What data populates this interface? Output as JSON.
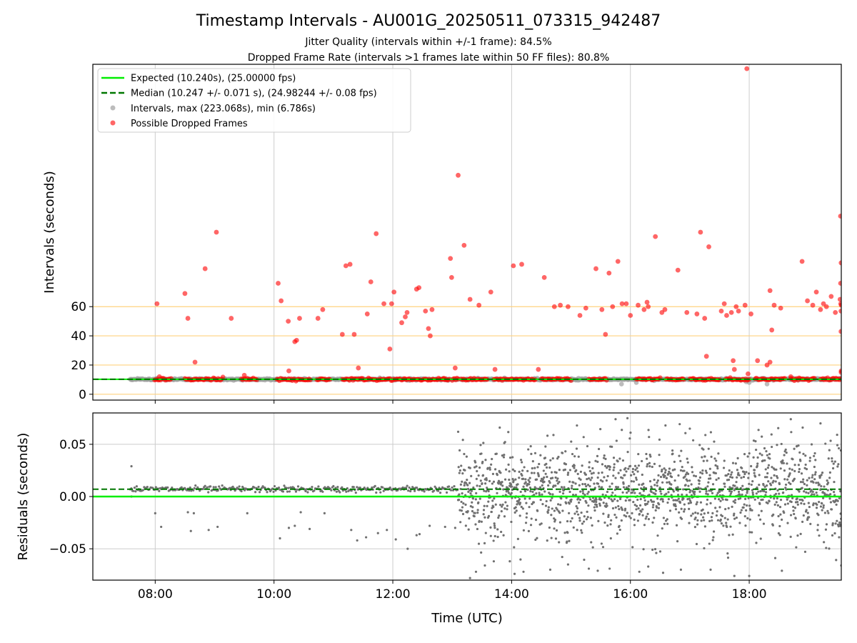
{
  "title": "Timestamp Intervals - AU001G_20250511_073315_942487",
  "subtitle_1": "Jitter Quality (intervals within +/-1 frame): 84.5%",
  "subtitle_2": "Dropped Frame Rate (intervals >1 frames late within 50 FF files): 80.8%",
  "colors": {
    "expected": "#00ee00",
    "median": "#007700",
    "intervals": "#a0a0a0",
    "dropped": "#ff0000",
    "reference_lines": "#ffd27f",
    "grid": "#cccccc",
    "residual_points": "#707070"
  },
  "chart_data": [
    {
      "type": "scatter",
      "panel": "top",
      "xlabel": "",
      "ylabel": "Intervals (seconds)",
      "x_unit": "hours UTC",
      "xlim": [
        6.95,
        19.55
      ],
      "ylim": [
        -4,
        226
      ],
      "yticks": [
        0,
        20,
        40,
        60
      ],
      "ytick_labels": [
        "0",
        "20",
        "40",
        "60"
      ],
      "xticks": [
        8,
        10,
        12,
        14,
        16,
        18
      ],
      "xtick_labels": [
        "08:00",
        "10:00",
        "12:00",
        "14:00",
        "16:00",
        "18:00"
      ],
      "grid": "vertical",
      "reference_lines_y": [
        0,
        20,
        40,
        60
      ],
      "expected_interval": 10.24,
      "median_interval": 10.247,
      "legend_position": "upper-left",
      "legend": [
        {
          "label": "Expected (10.240s), (25.00000 fps)",
          "style": "solid-line",
          "color": "#00ee00"
        },
        {
          "label": "Median (10.247 +/- 0.071 s), (24.98244 +/- 0.08 fps)",
          "style": "dashed-line",
          "color": "#007700"
        },
        {
          "label": "Intervals, max (223.068s), min (6.786s)",
          "style": "dot",
          "color": "#a0a0a0"
        },
        {
          "label": "Possible Dropped Frames",
          "style": "dot",
          "color": "#ff0000"
        }
      ],
      "intervals_x_range": [
        7.58,
        19.55
      ],
      "dropped_band_segments": [
        [
          7.99,
          8.28
        ],
        [
          8.5,
          9.15
        ],
        [
          9.45,
          9.72
        ],
        [
          10.05,
          10.62
        ],
        [
          10.72,
          10.95
        ],
        [
          11.15,
          12.95
        ],
        [
          13.0,
          13.1
        ],
        [
          13.15,
          13.6
        ],
        [
          13.7,
          14.4
        ],
        [
          14.5,
          15.0
        ],
        [
          15.3,
          15.6
        ],
        [
          16.1,
          16.5
        ],
        [
          16.6,
          16.9
        ],
        [
          17.0,
          17.5
        ],
        [
          17.6,
          18.0
        ],
        [
          18.1,
          18.6
        ],
        [
          18.7,
          19.1
        ],
        [
          19.2,
          19.55
        ]
      ],
      "dropped_frames": [
        [
          8.03,
          62
        ],
        [
          8.07,
          12
        ],
        [
          8.55,
          52
        ],
        [
          8.5,
          69
        ],
        [
          8.67,
          22
        ],
        [
          8.84,
          86
        ],
        [
          9.03,
          111
        ],
        [
          9.28,
          52
        ],
        [
          9.5,
          13
        ],
        [
          10.07,
          76
        ],
        [
          10.12,
          64
        ],
        [
          10.24,
          50
        ],
        [
          10.25,
          16
        ],
        [
          10.35,
          36
        ],
        [
          10.38,
          37
        ],
        [
          10.43,
          52
        ],
        [
          10.74,
          52
        ],
        [
          10.82,
          58
        ],
        [
          11.15,
          41
        ],
        [
          11.21,
          88
        ],
        [
          11.28,
          89
        ],
        [
          11.35,
          41
        ],
        [
          11.42,
          18
        ],
        [
          11.57,
          55
        ],
        [
          11.63,
          77
        ],
        [
          11.72,
          110
        ],
        [
          11.85,
          62
        ],
        [
          11.95,
          31
        ],
        [
          11.98,
          62
        ],
        [
          12.02,
          70
        ],
        [
          12.15,
          49
        ],
        [
          12.21,
          53
        ],
        [
          12.24,
          56
        ],
        [
          12.4,
          72
        ],
        [
          12.44,
          73
        ],
        [
          12.55,
          57
        ],
        [
          12.6,
          45
        ],
        [
          12.63,
          40
        ],
        [
          12.66,
          58
        ],
        [
          12.86,
          11
        ],
        [
          12.97,
          93
        ],
        [
          12.99,
          80
        ],
        [
          13.05,
          18
        ],
        [
          13.1,
          150
        ],
        [
          13.2,
          102
        ],
        [
          13.3,
          65
        ],
        [
          13.45,
          61
        ],
        [
          13.65,
          70
        ],
        [
          13.72,
          17
        ],
        [
          14.03,
          88
        ],
        [
          14.17,
          89
        ],
        [
          14.45,
          17
        ],
        [
          14.55,
          80
        ],
        [
          14.72,
          60
        ],
        [
          14.82,
          61
        ],
        [
          14.95,
          60
        ],
        [
          15.15,
          54
        ],
        [
          15.25,
          59
        ],
        [
          15.42,
          86
        ],
        [
          15.52,
          58
        ],
        [
          15.58,
          41
        ],
        [
          15.64,
          83
        ],
        [
          15.7,
          60
        ],
        [
          15.79,
          91
        ],
        [
          15.86,
          62
        ],
        [
          15.93,
          62
        ],
        [
          16.0,
          54
        ],
        [
          16.13,
          61
        ],
        [
          16.23,
          58
        ],
        [
          16.28,
          63
        ],
        [
          16.3,
          60
        ],
        [
          16.42,
          108
        ],
        [
          16.53,
          56
        ],
        [
          16.58,
          58
        ],
        [
          16.8,
          85
        ],
        [
          16.95,
          56
        ],
        [
          17.12,
          55
        ],
        [
          17.18,
          111
        ],
        [
          17.25,
          52
        ],
        [
          17.28,
          26
        ],
        [
          17.32,
          101
        ],
        [
          17.53,
          57
        ],
        [
          17.58,
          62
        ],
        [
          17.62,
          54
        ],
        [
          17.7,
          56
        ],
        [
          17.73,
          23
        ],
        [
          17.75,
          17
        ],
        [
          17.78,
          60
        ],
        [
          17.82,
          57
        ],
        [
          17.93,
          61
        ],
        [
          17.96,
          223
        ],
        [
          17.98,
          14
        ],
        [
          18.03,
          55
        ],
        [
          18.14,
          23
        ],
        [
          18.3,
          20
        ],
        [
          18.35,
          22
        ],
        [
          18.38,
          44
        ],
        [
          18.35,
          71
        ],
        [
          18.42,
          61
        ],
        [
          18.53,
          59
        ],
        [
          18.7,
          12
        ],
        [
          18.89,
          91
        ],
        [
          18.98,
          64
        ],
        [
          19.07,
          61
        ],
        [
          19.13,
          70
        ],
        [
          19.2,
          58
        ],
        [
          19.25,
          62
        ],
        [
          19.3,
          60
        ],
        [
          19.38,
          67
        ],
        [
          19.45,
          56
        ],
        [
          19.55,
          61
        ],
        [
          19.6,
          65
        ],
        [
          19.75,
          122
        ],
        [
          19.78,
          76
        ],
        [
          19.83,
          62
        ],
        [
          19.9,
          57
        ],
        [
          19.92,
          43
        ],
        [
          19.95,
          90
        ],
        [
          19.96,
          15
        ],
        [
          19.98,
          16
        ]
      ]
    },
    {
      "type": "scatter",
      "panel": "bottom",
      "xlabel": "Time (UTC)",
      "ylabel": "Residuals (seconds)",
      "x_unit": "hours UTC",
      "xlim": [
        6.95,
        19.55
      ],
      "ylim": [
        -0.08,
        0.08
      ],
      "yticks": [
        -0.05,
        0.0,
        0.05
      ],
      "ytick_labels": [
        "−0.05",
        "0.00",
        "0.05"
      ],
      "xticks": [
        8,
        10,
        12,
        14,
        16,
        18
      ],
      "xtick_labels": [
        "08:00",
        "10:00",
        "12:00",
        "14:00",
        "16:00",
        "18:00"
      ],
      "grid": "both",
      "expected_residual": 0.0,
      "median_residual": 0.007,
      "phase_1": {
        "x_range": [
          7.58,
          13.1
        ],
        "center": 0.007,
        "spread": 0.0015
      },
      "phase_2": {
        "x_range": [
          13.1,
          19.55
        ],
        "center": 0.004,
        "spread": 0.022
      },
      "outliers": [
        [
          7.6,
          0.029
        ],
        [
          7.6,
          0.0
        ],
        [
          8.0,
          -0.016
        ],
        [
          8.1,
          -0.029
        ],
        [
          8.55,
          -0.015
        ],
        [
          8.6,
          -0.033
        ],
        [
          8.65,
          -0.016
        ],
        [
          8.9,
          -0.032
        ],
        [
          9.05,
          -0.029
        ],
        [
          9.55,
          -0.016
        ],
        [
          10.1,
          -0.04
        ],
        [
          10.25,
          -0.03
        ],
        [
          10.35,
          -0.028
        ],
        [
          10.45,
          -0.015
        ],
        [
          10.6,
          -0.031
        ],
        [
          10.85,
          -0.016
        ],
        [
          11.3,
          -0.032
        ],
        [
          11.4,
          -0.042
        ],
        [
          11.55,
          -0.039
        ],
        [
          11.75,
          -0.035
        ],
        [
          11.9,
          -0.032
        ],
        [
          12.05,
          -0.041
        ],
        [
          12.25,
          -0.05
        ],
        [
          12.4,
          -0.037
        ],
        [
          12.45,
          -0.036
        ],
        [
          12.62,
          -0.028
        ],
        [
          12.88,
          -0.029
        ],
        [
          13.05,
          -0.03
        ],
        [
          13.1,
          0.062
        ],
        [
          13.3,
          -0.078
        ],
        [
          13.4,
          -0.072
        ],
        [
          13.55,
          -0.066
        ],
        [
          13.7,
          -0.062
        ],
        [
          13.8,
          0.066
        ],
        [
          14.05,
          -0.074
        ],
        [
          14.2,
          -0.072
        ],
        [
          14.65,
          -0.07
        ],
        [
          14.95,
          -0.065
        ],
        [
          15.1,
          0.068
        ],
        [
          15.3,
          -0.069
        ],
        [
          15.45,
          -0.071
        ],
        [
          15.65,
          -0.069
        ],
        [
          15.75,
          0.074
        ],
        [
          15.95,
          0.075
        ],
        [
          16.15,
          -0.072
        ],
        [
          16.3,
          -0.067
        ],
        [
          16.55,
          -0.073
        ],
        [
          16.85,
          -0.07
        ],
        [
          17.0,
          0.065
        ],
        [
          17.35,
          -0.07
        ],
        [
          17.75,
          -0.076
        ],
        [
          18.0,
          -0.076
        ],
        [
          18.55,
          -0.071
        ],
        [
          18.7,
          0.074
        ],
        [
          18.9,
          0.066
        ],
        [
          19.2,
          0.07
        ],
        [
          19.55,
          -0.066
        ]
      ]
    }
  ]
}
